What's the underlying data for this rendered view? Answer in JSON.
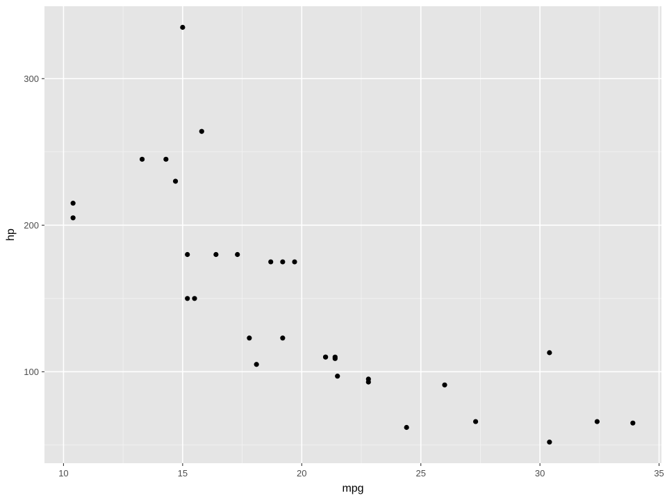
{
  "chart_data": {
    "type": "scatter",
    "title": "",
    "xlabel": "mpg",
    "ylabel": "hp",
    "xlim": [
      9.2,
      35.1
    ],
    "ylim": [
      37.6,
      349.4
    ],
    "x_ticks": [
      10,
      15,
      20,
      25,
      30,
      35
    ],
    "x_minor_ticks": [
      12.5,
      17.5,
      22.5,
      27.5,
      32.5
    ],
    "y_ticks": [
      100,
      200,
      300
    ],
    "y_minor_ticks": [
      50,
      150,
      250
    ],
    "x_tick_labels": [
      "10",
      "15",
      "20",
      "25",
      "30",
      "35"
    ],
    "y_tick_labels": [
      "100",
      "200",
      "300"
    ],
    "grid": true,
    "legend": "none",
    "colors": {
      "panel_background": "#e5e5e5",
      "point": "#000000",
      "grid_major": "#ffffff",
      "grid_minor": "#f3f3f3"
    },
    "points": [
      {
        "x": 21.0,
        "y": 110
      },
      {
        "x": 21.0,
        "y": 110
      },
      {
        "x": 22.8,
        "y": 93
      },
      {
        "x": 21.4,
        "y": 110
      },
      {
        "x": 18.7,
        "y": 175
      },
      {
        "x": 18.1,
        "y": 105
      },
      {
        "x": 14.3,
        "y": 245
      },
      {
        "x": 24.4,
        "y": 62
      },
      {
        "x": 22.8,
        "y": 95
      },
      {
        "x": 19.2,
        "y": 123
      },
      {
        "x": 17.8,
        "y": 123
      },
      {
        "x": 16.4,
        "y": 180
      },
      {
        "x": 17.3,
        "y": 180
      },
      {
        "x": 15.2,
        "y": 180
      },
      {
        "x": 10.4,
        "y": 205
      },
      {
        "x": 10.4,
        "y": 215
      },
      {
        "x": 14.7,
        "y": 230
      },
      {
        "x": 32.4,
        "y": 66
      },
      {
        "x": 30.4,
        "y": 52
      },
      {
        "x": 33.9,
        "y": 65
      },
      {
        "x": 21.5,
        "y": 97
      },
      {
        "x": 15.5,
        "y": 150
      },
      {
        "x": 15.2,
        "y": 150
      },
      {
        "x": 13.3,
        "y": 245
      },
      {
        "x": 19.2,
        "y": 175
      },
      {
        "x": 27.3,
        "y": 66
      },
      {
        "x": 26.0,
        "y": 91
      },
      {
        "x": 30.4,
        "y": 113
      },
      {
        "x": 15.8,
        "y": 264
      },
      {
        "x": 19.7,
        "y": 175
      },
      {
        "x": 15.0,
        "y": 335
      },
      {
        "x": 21.4,
        "y": 109
      }
    ]
  }
}
